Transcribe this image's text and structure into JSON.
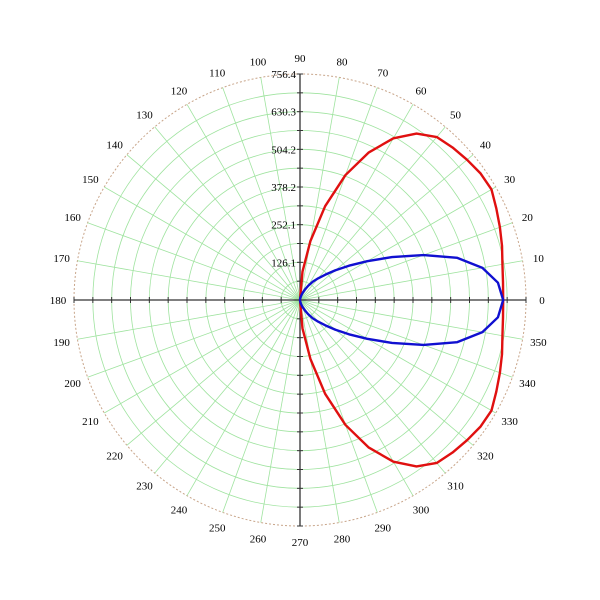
{
  "chart_data": {
    "type": "polar",
    "title": "",
    "radial_ticks": [
      "126.1",
      "252.1",
      "378.2",
      "504.2",
      "630.3",
      "756.4"
    ],
    "radial_max": 756.4,
    "angle_labels": [
      "0",
      "10",
      "20",
      "30",
      "40",
      "50",
      "60",
      "70",
      "80",
      "90",
      "100",
      "110",
      "120",
      "130",
      "140",
      "150",
      "160",
      "170",
      "180",
      "190",
      "200",
      "210",
      "220",
      "230",
      "240",
      "250",
      "260",
      "270",
      "280",
      "290",
      "300",
      "310",
      "320",
      "330",
      "340",
      "350"
    ],
    "grid": true,
    "colors": {
      "grid": "#9fe39f",
      "outer_ring": "#c8a58a",
      "axis": "#333333",
      "series_red": "#e01010",
      "series_blue": "#1010d0"
    },
    "series": [
      {
        "color": "red",
        "points": [
          {
            "angle": 0,
            "r": 680
          },
          {
            "angle": 5,
            "r": 682
          },
          {
            "angle": 10,
            "r": 688
          },
          {
            "angle": 15,
            "r": 700
          },
          {
            "angle": 20,
            "r": 712
          },
          {
            "angle": 25,
            "r": 725
          },
          {
            "angle": 30,
            "r": 740
          },
          {
            "angle": 35,
            "r": 738
          },
          {
            "angle": 40,
            "r": 730
          },
          {
            "angle": 45,
            "r": 722
          },
          {
            "angle": 50,
            "r": 712
          },
          {
            "angle": 55,
            "r": 680
          },
          {
            "angle": 60,
            "r": 625
          },
          {
            "angle": 65,
            "r": 545
          },
          {
            "angle": 70,
            "r": 445
          },
          {
            "angle": 75,
            "r": 325
          },
          {
            "angle": 80,
            "r": 200
          },
          {
            "angle": 85,
            "r": 95
          },
          {
            "angle": 90,
            "r": 0
          },
          {
            "angle": 270,
            "r": 0
          },
          {
            "angle": 275,
            "r": 95
          },
          {
            "angle": 280,
            "r": 200
          },
          {
            "angle": 285,
            "r": 325
          },
          {
            "angle": 290,
            "r": 445
          },
          {
            "angle": 295,
            "r": 545
          },
          {
            "angle": 300,
            "r": 625
          },
          {
            "angle": 305,
            "r": 680
          },
          {
            "angle": 310,
            "r": 712
          },
          {
            "angle": 315,
            "r": 722
          },
          {
            "angle": 320,
            "r": 730
          },
          {
            "angle": 325,
            "r": 738
          },
          {
            "angle": 330,
            "r": 740
          },
          {
            "angle": 335,
            "r": 725
          },
          {
            "angle": 340,
            "r": 712
          },
          {
            "angle": 345,
            "r": 700
          },
          {
            "angle": 350,
            "r": 688
          },
          {
            "angle": 355,
            "r": 682
          },
          {
            "angle": 360,
            "r": 680
          }
        ]
      },
      {
        "color": "blue",
        "points": [
          {
            "angle": 0,
            "r": 680
          },
          {
            "angle": 5,
            "r": 665
          },
          {
            "angle": 10,
            "r": 620
          },
          {
            "angle": 15,
            "r": 545
          },
          {
            "angle": 20,
            "r": 440
          },
          {
            "angle": 25,
            "r": 340
          },
          {
            "angle": 30,
            "r": 260
          },
          {
            "angle": 35,
            "r": 200
          },
          {
            "angle": 40,
            "r": 155
          },
          {
            "angle": 45,
            "r": 120
          },
          {
            "angle": 50,
            "r": 95
          },
          {
            "angle": 55,
            "r": 75
          },
          {
            "angle": 60,
            "r": 55
          },
          {
            "angle": 65,
            "r": 38
          },
          {
            "angle": 70,
            "r": 25
          },
          {
            "angle": 75,
            "r": 15
          },
          {
            "angle": 80,
            "r": 7
          },
          {
            "angle": 85,
            "r": 2
          },
          {
            "angle": 90,
            "r": 0
          },
          {
            "angle": 270,
            "r": 0
          },
          {
            "angle": 275,
            "r": 2
          },
          {
            "angle": 280,
            "r": 7
          },
          {
            "angle": 285,
            "r": 15
          },
          {
            "angle": 290,
            "r": 25
          },
          {
            "angle": 295,
            "r": 38
          },
          {
            "angle": 300,
            "r": 55
          },
          {
            "angle": 305,
            "r": 75
          },
          {
            "angle": 310,
            "r": 95
          },
          {
            "angle": 315,
            "r": 120
          },
          {
            "angle": 320,
            "r": 155
          },
          {
            "angle": 325,
            "r": 200
          },
          {
            "angle": 330,
            "r": 260
          },
          {
            "angle": 335,
            "r": 340
          },
          {
            "angle": 340,
            "r": 440
          },
          {
            "angle": 345,
            "r": 545
          },
          {
            "angle": 350,
            "r": 620
          },
          {
            "angle": 355,
            "r": 665
          },
          {
            "angle": 360,
            "r": 680
          }
        ]
      }
    ]
  }
}
